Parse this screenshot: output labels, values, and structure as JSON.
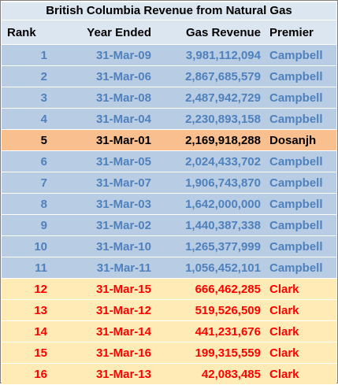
{
  "title": "British Columbia Revenue from Natural Gas",
  "columns": {
    "rank": "Rank",
    "year": "Year Ended",
    "revenue": "Gas Revenue",
    "premier": "Premier"
  },
  "colors": {
    "campbell_bg": "#b8cce4",
    "campbell_text": "#4f81bd",
    "dosanjh_bg": "#fabf8f",
    "dosanjh_text": "#000000",
    "clark_bg": "#ffebb5",
    "clark_text": "#ff0000"
  },
  "rows": [
    {
      "rank": "1",
      "year": "31-Mar-09",
      "revenue": "3,981,112,094",
      "premier": "Campbell",
      "group": "blue"
    },
    {
      "rank": "2",
      "year": "31-Mar-06",
      "revenue": "2,867,685,579",
      "premier": "Campbell",
      "group": "blue"
    },
    {
      "rank": "3",
      "year": "31-Mar-08",
      "revenue": "2,487,942,729",
      "premier": "Campbell",
      "group": "blue"
    },
    {
      "rank": "4",
      "year": "31-Mar-04",
      "revenue": "2,230,893,158",
      "premier": "Campbell",
      "group": "blue"
    },
    {
      "rank": "5",
      "year": "31-Mar-01",
      "revenue": "2,169,918,288",
      "premier": "Dosanjh",
      "group": "orange"
    },
    {
      "rank": "6",
      "year": "31-Mar-05",
      "revenue": "2,024,433,702",
      "premier": "Campbell",
      "group": "blue"
    },
    {
      "rank": "7",
      "year": "31-Mar-07",
      "revenue": "1,906,743,870",
      "premier": "Campbell",
      "group": "blue"
    },
    {
      "rank": "8",
      "year": "31-Mar-03",
      "revenue": "1,642,000,000",
      "premier": "Campbell",
      "group": "blue"
    },
    {
      "rank": "9",
      "year": "31-Mar-02",
      "revenue": "1,440,387,338",
      "premier": "Campbell",
      "group": "blue"
    },
    {
      "rank": "10",
      "year": "31-Mar-10",
      "revenue": "1,265,377,999",
      "premier": "Campbell",
      "group": "blue"
    },
    {
      "rank": "11",
      "year": "31-Mar-11",
      "revenue": "1,056,452,101",
      "premier": "Campbell",
      "group": "blue"
    },
    {
      "rank": "12",
      "year": "31-Mar-15",
      "revenue": "666,462,285",
      "premier": "Clark",
      "group": "cream"
    },
    {
      "rank": "13",
      "year": "31-Mar-12",
      "revenue": "519,526,509",
      "premier": "Clark",
      "group": "cream"
    },
    {
      "rank": "14",
      "year": "31-Mar-14",
      "revenue": "441,231,676",
      "premier": "Clark",
      "group": "cream"
    },
    {
      "rank": "15",
      "year": "31-Mar-16",
      "revenue": "199,315,559",
      "premier": "Clark",
      "group": "cream"
    },
    {
      "rank": "16",
      "year": "31-Mar-13",
      "revenue": "42,083,485",
      "premier": "Clark",
      "group": "cream"
    }
  ]
}
